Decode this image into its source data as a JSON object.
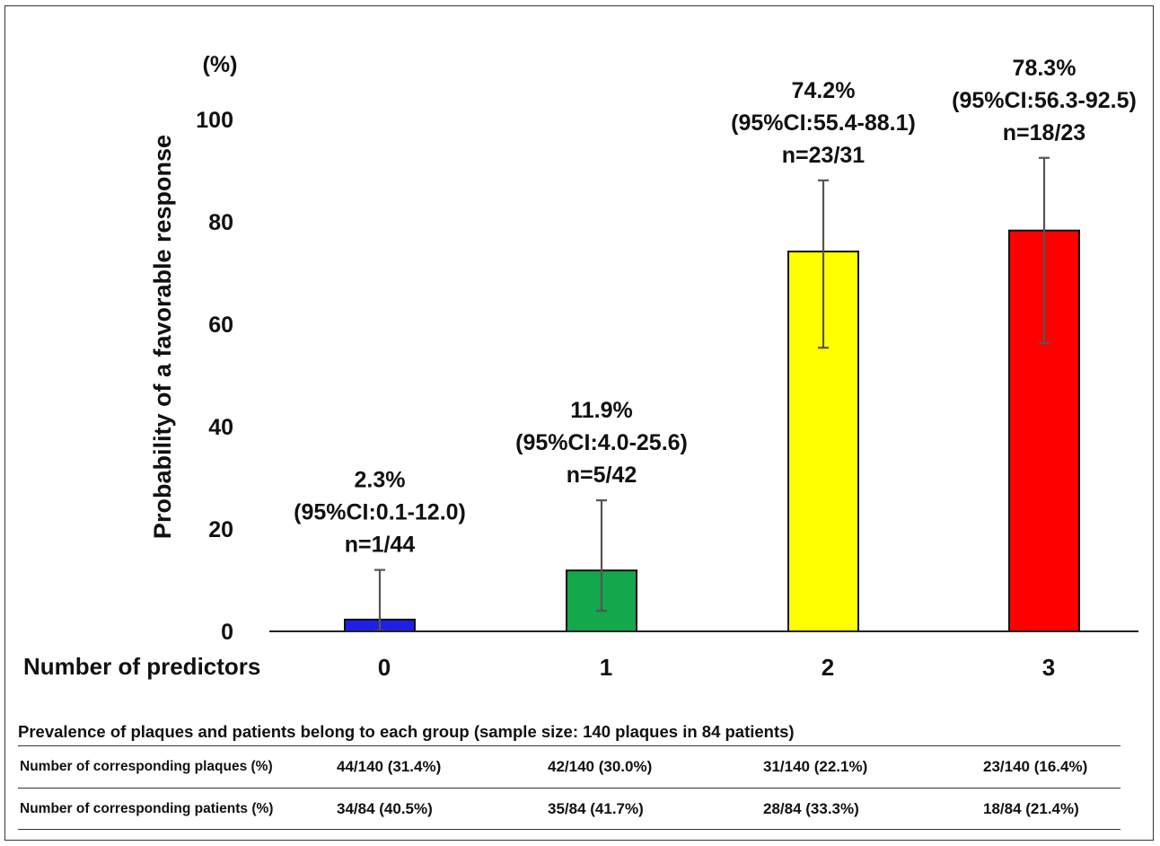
{
  "chart_data": {
    "type": "bar",
    "categories": [
      "0",
      "1",
      "2",
      "3"
    ],
    "values": [
      2.3,
      11.9,
      74.2,
      78.3
    ],
    "ci_low": [
      0.1,
      4.0,
      55.4,
      56.3
    ],
    "ci_high": [
      12.0,
      25.6,
      88.1,
      92.5
    ],
    "colors": [
      "#1f1fe6",
      "#12a84b",
      "#ffff00",
      "#ff0000"
    ],
    "data_labels": [
      [
        "2.3%",
        "(95%CI:0.1-12.0)",
        "n=1/44"
      ],
      [
        "11.9%",
        "(95%CI:4.0-25.6)",
        "n=5/42"
      ],
      [
        "74.2%",
        "(95%CI:55.4-88.1)",
        "n=23/31"
      ],
      [
        "78.3%",
        "(95%CI:56.3-92.5)",
        "n=18/23"
      ]
    ],
    "xlabel": "Number of  predictors",
    "ylabel": "Probability of a favorable response",
    "y_unit": "(%)",
    "yticks": [
      0,
      20,
      40,
      60,
      80,
      100
    ],
    "ylim": [
      0,
      100
    ],
    "grid": false
  },
  "table": {
    "title": "Prevalence of plaques and patients belong to each group (sample size: 140 plaques in 84 patients)",
    "rows": [
      {
        "label": "Number of corresponding plaques (%)",
        "values": [
          "44/140 (31.4%)",
          "42/140 (30.0%)",
          "31/140 (22.1%)",
          "23/140 (16.4%)"
        ]
      },
      {
        "label": "Number of corresponding patients (%)",
        "values": [
          "34/84 (40.5%)",
          "35/84 (41.7%)",
          "28/84 (33.3%)",
          "18/84 (21.4%)"
        ]
      }
    ]
  }
}
